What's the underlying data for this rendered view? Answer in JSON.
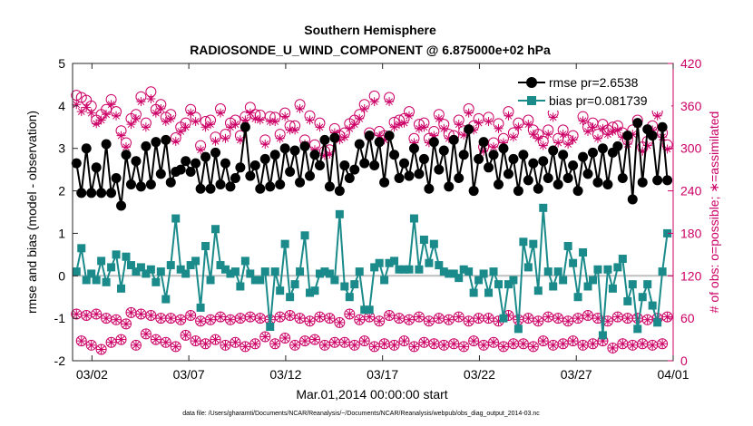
{
  "chart_data": {
    "type": "line",
    "title": "Southern Hemisphere",
    "subtitle": "RADIOSONDE_U_WIND_COMPONENT @ 6.875000e+02 hPa",
    "xlabel": "Mar.01,2014 00:00:00 start",
    "ylabel_left": "rmse and bias (model - observation)",
    "ylabel_right": "# of obs: o=possible; ∗=assimilated",
    "ylim_left": [
      -2,
      5
    ],
    "ylim_right": [
      0,
      420
    ],
    "xlim": [
      0,
      31
    ],
    "left_ticks": [
      -2,
      -1,
      0,
      1,
      2,
      3,
      4,
      5
    ],
    "right_ticks": [
      0,
      60,
      120,
      180,
      240,
      300,
      360,
      420
    ],
    "x_tick_values": [
      1,
      6,
      11,
      16,
      21,
      26,
      31
    ],
    "x_tick_labels": [
      "03/02",
      "03/07",
      "03/12",
      "03/17",
      "03/22",
      "03/27",
      "04/01"
    ],
    "footnote": "data file: /Users/gharamti/Documents/NCAR/Reanalysis/~/Documents/NCAR/Reanalysis/webpub/obs_diag_output_2014-03.nc",
    "legend": {
      "position": "top-right",
      "rmse_label": "rmse pr=2.6538",
      "bias_label": "bias pr=0.081739"
    },
    "colors": {
      "rmse": "#000000",
      "bias": "#1a8a8a",
      "counts": "#cc0066",
      "zero_line": "#bfbfbf",
      "axis_right": "#cc0066"
    },
    "series": [
      {
        "name": "rmse",
        "values": [
          2.65,
          1.95,
          3.0,
          1.95,
          2.55,
          1.95,
          3.1,
          1.95,
          2.3,
          1.65,
          2.85,
          2.15,
          2.7,
          2.1,
          3.05,
          2.15,
          3.15,
          2.4,
          3.2,
          2.2,
          2.45,
          2.5,
          2.7,
          2.45,
          2.65,
          2.05,
          2.8,
          2.05,
          2.9,
          2.15,
          2.65,
          2.1,
          2.3,
          2.55,
          3.5,
          2.35,
          2.6,
          2.05,
          2.75,
          2.1,
          2.85,
          2.15,
          3.0,
          2.45,
          2.95,
          2.2,
          3.05,
          2.35,
          2.85,
          2.6,
          3.2,
          2.1,
          3.25,
          2.0,
          2.6,
          2.3,
          2.5,
          3.1,
          2.65,
          3.3,
          2.6,
          3.15,
          2.2,
          3.3,
          2.85,
          2.3,
          2.65,
          2.35,
          3.0,
          2.4,
          2.75,
          2.05,
          3.15,
          2.5,
          2.95,
          2.1,
          3.2,
          2.3,
          2.85,
          3.45,
          2.0,
          2.75,
          3.15,
          2.55,
          2.85,
          2.15,
          3.0,
          2.4,
          2.75,
          2.0,
          2.85,
          2.25,
          2.65,
          2.05,
          2.7,
          2.3,
          2.95,
          2.15,
          2.85,
          2.3,
          2.6,
          2.0,
          2.8,
          2.4,
          2.9,
          2.2,
          3.0,
          2.15,
          2.9,
          3.05,
          2.3,
          3.3,
          1.8,
          3.6,
          2.2,
          3.45,
          3.3,
          2.25,
          3.5,
          2.25
        ],
        "point_style": "filled circle with line"
      },
      {
        "name": "bias",
        "values": [
          0.1,
          0.65,
          -0.1,
          0.05,
          -0.1,
          0.35,
          -0.15,
          0.2,
          0.5,
          -0.3,
          0.45,
          0.25,
          0.1,
          0.2,
          0.05,
          0.15,
          -0.15,
          0.1,
          -0.55,
          0.25,
          1.35,
          0.15,
          0.05,
          0.25,
          0.35,
          -0.75,
          0.7,
          -0.1,
          1.1,
          0.25,
          0.15,
          0.05,
          0.1,
          -0.25,
          0.35,
          0.05,
          -0.1,
          -0.1,
          0.1,
          -1.2,
          0.1,
          -0.35,
          0.75,
          -0.5,
          -0.2,
          0.1,
          0.95,
          -0.4,
          -0.35,
          0.05,
          0.1,
          0.05,
          -0.1,
          1.45,
          -0.25,
          -0.5,
          -0.2,
          0.1,
          -0.8,
          -0.8,
          0.2,
          0.3,
          -0.1,
          0.3,
          0.35,
          0.15,
          0.15,
          0.15,
          1.35,
          0.15,
          0.85,
          0.3,
          0.75,
          0.25,
          0.1,
          0.05,
          0.05,
          -0.05,
          0.15,
          0.1,
          -0.4,
          -0.1,
          0.05,
          -0.4,
          0.1,
          -0.2,
          -1.0,
          -0.2,
          -0.1,
          -1.25,
          0.8,
          0.2,
          0.75,
          -0.35,
          1.6,
          0.1,
          -0.25,
          0.1,
          -0.1,
          0.7,
          0.3,
          -0.5,
          0.55,
          -0.25,
          -0.1,
          0.15,
          -1.4,
          0.15,
          -0.3,
          0.2,
          0.4,
          -0.6,
          -0.2,
          -1.25,
          -0.5,
          -0.2,
          -0.7,
          -1.1,
          0.1,
          1.0
        ],
        "point_style": "filled square with line"
      },
      {
        "name": "possible_high",
        "axis": "right",
        "values": [
          375,
          372,
          368,
          360,
          340,
          348,
          355,
          369,
          352,
          325,
          308,
          342,
          348,
          373,
          336,
          380,
          355,
          362,
          344,
          348,
          315,
          330,
          336,
          355,
          344,
          304,
          338,
          340,
          316,
          356,
          320,
          336,
          340,
          318,
          345,
          358,
          348,
          347,
          312,
          345,
          344,
          320,
          350,
          332,
          332,
          362,
          312,
          346,
          305,
          336,
          296,
          298,
          328,
          318,
          322,
          335,
          340,
          348,
          362,
          322,
          374,
          324,
          318,
          372,
          337,
          340,
          342,
          352,
          314,
          334,
          336,
          314,
          324,
          348,
          334,
          320,
          318,
          340,
          325,
          356,
          332,
          342,
          302,
          344,
          308,
          335,
          314,
          352,
          322,
          336,
          380,
          340,
          326,
          320,
          310,
          326,
          350,
          314,
          326,
          312,
          318,
          368,
          345,
          330,
          336,
          320,
          334,
          326,
          330,
          332,
          322,
          312,
          326,
          340,
          302,
          310,
          332,
          352,
          322,
          305
        ],
        "point_style": "open circle"
      },
      {
        "name": "assimilated_high",
        "axis": "right",
        "values": [
          362,
          352,
          358,
          350,
          335,
          340,
          348,
          362,
          346,
          318,
          302,
          334,
          342,
          366,
          330,
          370,
          350,
          356,
          338,
          342,
          310,
          324,
          330,
          350,
          338,
          298,
          330,
          334,
          310,
          350,
          314,
          330,
          334,
          312,
          340,
          350,
          342,
          340,
          306,
          338,
          338,
          314,
          345,
          326,
          326,
          356,
          306,
          340,
          298,
          330,
          290,
          292,
          322,
          312,
          316,
          328,
          334,
          342,
          356,
          316,
          366,
          318,
          312,
          366,
          330,
          334,
          336,
          346,
          308,
          328,
          330,
          308,
          318,
          342,
          328,
          314,
          312,
          334,
          319,
          350,
          326,
          336,
          296,
          338,
          302,
          328,
          308,
          346,
          316,
          330,
          372,
          334,
          320,
          314,
          304,
          320,
          344,
          308,
          320,
          306,
          312,
          362,
          339,
          324,
          330,
          314,
          328,
          320,
          324,
          326,
          316,
          306,
          320,
          334,
          296,
          304,
          326,
          346,
          316,
          299
        ],
        "point_style": "asterisk"
      },
      {
        "name": "possible_low",
        "axis": "right",
        "values": [
          66,
          28,
          64,
          22,
          66,
          16,
          60,
          26,
          58,
          30,
          52,
          68,
          22,
          66,
          38,
          64,
          30,
          60,
          26,
          60,
          20,
          58,
          36,
          64,
          28,
          56,
          24,
          58,
          30,
          62,
          22,
          58,
          26,
          60,
          20,
          62,
          24,
          60,
          34,
          58,
          24,
          62,
          32,
          64,
          22,
          60,
          28,
          56,
          30,
          62,
          22,
          60,
          26,
          54,
          26,
          66,
          22,
          58,
          28,
          62,
          20,
          56,
          24,
          64,
          22,
          60,
          28,
          58,
          20,
          62,
          26,
          56,
          24,
          60,
          22,
          58,
          24,
          62,
          20,
          56,
          28,
          60,
          22,
          60,
          26,
          56,
          20,
          64,
          24,
          58,
          24,
          60,
          20,
          56,
          28,
          62,
          22,
          60,
          24,
          56,
          28,
          60,
          22,
          64,
          24,
          60,
          28,
          56,
          18,
          62,
          24,
          60,
          22,
          60,
          24,
          58,
          22,
          60,
          24,
          62
        ],
        "point_style": "open circle"
      },
      {
        "name": "assimilated_low",
        "axis": "right",
        "values": [
          66,
          28,
          64,
          22,
          66,
          16,
          60,
          26,
          58,
          30,
          52,
          68,
          22,
          66,
          38,
          64,
          30,
          60,
          26,
          60,
          20,
          58,
          36,
          64,
          28,
          56,
          24,
          58,
          30,
          62,
          22,
          58,
          26,
          60,
          20,
          62,
          24,
          60,
          34,
          58,
          24,
          62,
          32,
          64,
          22,
          60,
          28,
          56,
          30,
          62,
          22,
          60,
          26,
          54,
          26,
          66,
          22,
          58,
          28,
          62,
          20,
          56,
          24,
          64,
          22,
          60,
          28,
          58,
          20,
          62,
          26,
          56,
          24,
          60,
          22,
          58,
          24,
          62,
          20,
          56,
          28,
          60,
          22,
          60,
          26,
          56,
          20,
          64,
          24,
          58,
          24,
          60,
          20,
          56,
          28,
          62,
          22,
          60,
          24,
          56,
          28,
          60,
          22,
          64,
          24,
          60,
          28,
          56,
          18,
          62,
          24,
          60,
          22,
          60,
          24,
          58,
          22,
          60,
          24,
          62
        ],
        "point_style": "asterisk"
      }
    ]
  }
}
